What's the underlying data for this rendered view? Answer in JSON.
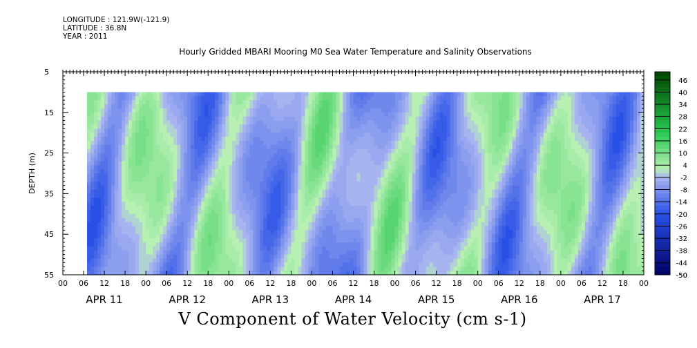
{
  "meta": {
    "longitude": "LONGITUDE : 121.9W(-121.9)",
    "latitude": "LATITUDE : 36.8N",
    "year": "YEAR : 2011"
  },
  "title": "Hourly Gridded MBARI Mooring M0 Sea Water Temperature and Salinity Observations",
  "variable_label": "V Component of Water Velocity (cm s-1)",
  "chart_data": {
    "type": "heatmap",
    "title": "Hourly Gridded MBARI Mooring M0 Sea Water Temperature and Salinity Observations",
    "xlabel": "",
    "ylabel": "DEPTH (m)",
    "colorbar_label": "V Component of Water Velocity (cm s-1)",
    "y_axis": {
      "range": [
        5,
        55
      ],
      "inverted": true,
      "ticks": [
        5,
        15,
        25,
        35,
        45,
        55
      ],
      "minor_step": 1
    },
    "x_axis": {
      "range_hours": [
        0,
        168
      ],
      "hour_tick_labels": [
        "00",
        "06",
        "12",
        "18",
        "00",
        "06",
        "12",
        "18",
        "00",
        "06",
        "12",
        "18",
        "00",
        "06",
        "12",
        "18",
        "00",
        "06",
        "12",
        "18",
        "00",
        "06",
        "12",
        "18",
        "00",
        "06",
        "12",
        "18",
        "00"
      ],
      "day_labels": [
        "APR 11",
        "APR 12",
        "APR 13",
        "APR 14",
        "APR 15",
        "APR 16",
        "APR 17"
      ]
    },
    "data_extent": {
      "x_start_hour": 7,
      "x_end_hour": 168,
      "depth_top": 10,
      "depth_bottom": 55
    },
    "colorbar": {
      "levels": [
        -50,
        -44,
        -38,
        -32,
        -26,
        -20,
        -14,
        -8,
        -2,
        4,
        10,
        16,
        22,
        28,
        34,
        40,
        46
      ],
      "min": -50,
      "max": 50,
      "step": 2,
      "low_color": "#000066",
      "mid_low_color": "#a8b4f0",
      "mid_high_color": "#b8f0b4",
      "high_color": "#004400"
    },
    "grid": false,
    "legend": "colorbar-right"
  }
}
